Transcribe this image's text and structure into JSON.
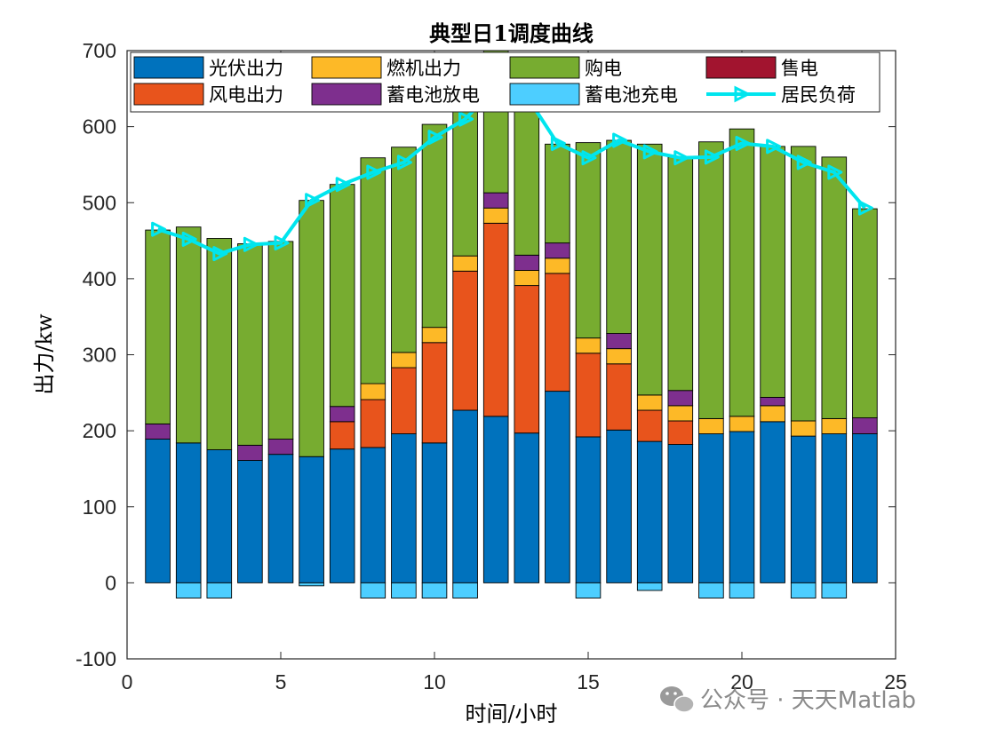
{
  "chart_data": {
    "type": "bar",
    "stacked": true,
    "title": "典型日1调度曲线",
    "xlabel": "时间/小时",
    "ylabel": "出力/kw",
    "xlim": [
      0,
      25
    ],
    "ylim": [
      -100,
      700
    ],
    "xticks": [
      "0",
      "5",
      "10",
      "15",
      "20",
      "25"
    ],
    "yticks": [
      "-100",
      "0",
      "100",
      "200",
      "300",
      "400",
      "500",
      "600",
      "700"
    ],
    "x": [
      1,
      2,
      3,
      4,
      5,
      6,
      7,
      8,
      9,
      10,
      11,
      12,
      13,
      14,
      15,
      16,
      17,
      18,
      19,
      20,
      21,
      22,
      23,
      24
    ],
    "series": [
      {
        "name": "光伏出力",
        "color": "#0072BD",
        "values": [
          189,
          184,
          175,
          161,
          169,
          166,
          176,
          178,
          196,
          184,
          227,
          219,
          197,
          252,
          192,
          201,
          186,
          182,
          196,
          199,
          212,
          193,
          196,
          196
        ]
      },
      {
        "name": "风电出力",
        "color": "#E8541C",
        "values": [
          0,
          0,
          0,
          0,
          0,
          0,
          36,
          63,
          87,
          132,
          183,
          254,
          194,
          155,
          110,
          87,
          41,
          31,
          0,
          0,
          0,
          0,
          0,
          0
        ]
      },
      {
        "name": "燃机出力",
        "color": "#FDB927",
        "values": [
          0,
          0,
          0,
          0,
          0,
          0,
          0,
          21,
          20,
          20,
          20,
          20,
          20,
          20,
          20,
          20,
          20,
          20,
          20,
          20,
          21,
          20,
          20,
          0
        ]
      },
      {
        "name": "蓄电池放电",
        "color": "#7E2F8E",
        "values": [
          20,
          0,
          0,
          20,
          20,
          0,
          20,
          0,
          0,
          0,
          0,
          20,
          20,
          20,
          0,
          20,
          0,
          20,
          0,
          0,
          11,
          0,
          0,
          21
        ]
      },
      {
        "name": "购电",
        "color": "#77AC30",
        "values": [
          255,
          284,
          278,
          265,
          260,
          337,
          292,
          297,
          270,
          267,
          210,
          214,
          218,
          130,
          257,
          254,
          330,
          307,
          364,
          378,
          330,
          361,
          344,
          275
        ]
      },
      {
        "name": "售电",
        "color": "#A2142F",
        "values": [
          0,
          0,
          0,
          0,
          0,
          0,
          0,
          0,
          0,
          0,
          0,
          0,
          0,
          0,
          0,
          0,
          0,
          0,
          0,
          0,
          0,
          0,
          0,
          0
        ]
      },
      {
        "name": "蓄电池充电",
        "color": "#4DCEFF",
        "values": [
          0,
          -20,
          -20,
          0,
          0,
          -4,
          0,
          -20,
          -20,
          -20,
          -20,
          0,
          0,
          0,
          -20,
          0,
          -10,
          0,
          -20,
          -20,
          0,
          -20,
          -20,
          0
        ]
      }
    ],
    "load_series": {
      "name": "居民负荷",
      "color": "#00E5EE",
      "type": "line",
      "marker": "triangle-right",
      "values": [
        465,
        452,
        433,
        445,
        447,
        503,
        524,
        540,
        553,
        586,
        610,
        652,
        640,
        578,
        559,
        582,
        567,
        559,
        560,
        578,
        574,
        553,
        540,
        493
      ]
    },
    "legend": {
      "placement": "top",
      "columns": 4,
      "order": [
        "光伏出力",
        "燃机出力",
        "购电",
        "售电",
        "风电出力",
        "蓄电池放电",
        "蓄电池充电",
        "居民负荷"
      ]
    }
  },
  "watermark": {
    "icon": "wechat-icon",
    "text": "公众号 · 天天Matlab"
  }
}
